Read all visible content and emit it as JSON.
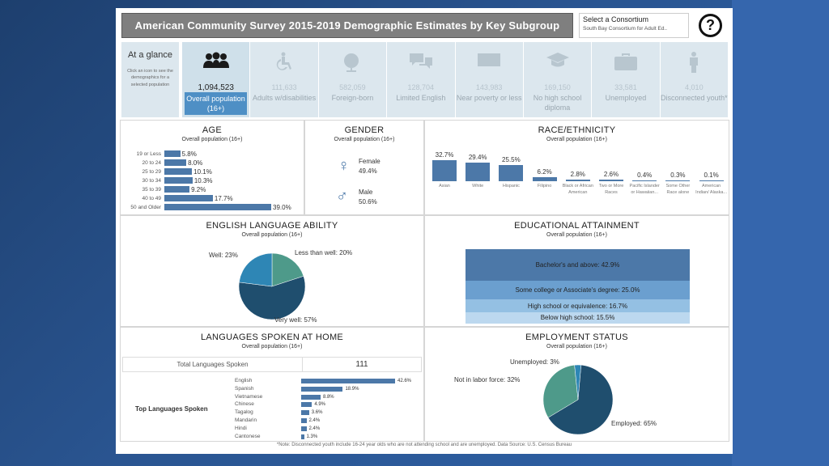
{
  "title": "American Community Survey 2015-2019 Demographic Estimates by Key Subgroup",
  "consortium": {
    "label": "Select a Consortium",
    "value": "South Bay Consortium for Adult Ed.."
  },
  "help_icon": "question-circle-icon",
  "glance": {
    "title": "At a glance",
    "hint": "Click an icon to see the demographics for a selected population"
  },
  "tiles": [
    {
      "icon": "people-icon",
      "value": "1,094,523",
      "label": "Overall population (16+)",
      "active": true
    },
    {
      "icon": "wheelchair-icon",
      "value": "111,633",
      "label": "Adults w/disabilities",
      "active": false
    },
    {
      "icon": "globe-icon",
      "value": "582,059",
      "label": "Foreign-born",
      "active": false
    },
    {
      "icon": "speech-bubbles-icon",
      "value": "128,704",
      "label": "Limited English",
      "active": false
    },
    {
      "icon": "money-icon",
      "value": "143,983",
      "label": "Near poverty or less",
      "active": false
    },
    {
      "icon": "graduation-cap-icon",
      "value": "169,150",
      "label": "No high school diploma",
      "active": false
    },
    {
      "icon": "briefcase-icon",
      "value": "33,581",
      "label": "Unemployed",
      "active": false
    },
    {
      "icon": "person-icon",
      "value": "4,010",
      "label": "Disconnected youth*",
      "active": false
    }
  ],
  "age": {
    "title": "AGE",
    "subtitle": "Overall population (16+)",
    "rows": [
      {
        "label": "19 or Less",
        "pct": "5.8%",
        "value": 5.8
      },
      {
        "label": "20 to 24",
        "pct": "8.0%",
        "value": 8.0
      },
      {
        "label": "25 to 29",
        "pct": "10.1%",
        "value": 10.1
      },
      {
        "label": "30 to 34",
        "pct": "10.3%",
        "value": 10.3
      },
      {
        "label": "35 to 39",
        "pct": "9.2%",
        "value": 9.2
      },
      {
        "label": "40 to 49",
        "pct": "17.7%",
        "value": 17.7
      },
      {
        "label": "50 and Older",
        "pct": "39.0%",
        "value": 39.0
      }
    ]
  },
  "gender": {
    "title": "GENDER",
    "subtitle": "Overall population (16+)",
    "female": {
      "label": "Female",
      "pct": "49.4%"
    },
    "male": {
      "label": "Male",
      "pct": "50.6%"
    }
  },
  "race": {
    "title": "RACE/ETHNICITY",
    "subtitle": "Overall population (16+)",
    "cols": [
      {
        "label": "Asian",
        "pct": "32.7%",
        "value": 32.7
      },
      {
        "label": "White",
        "pct": "29.4%",
        "value": 29.4
      },
      {
        "label": "Hispanic",
        "pct": "25.5%",
        "value": 25.5
      },
      {
        "label": "Filipino",
        "pct": "6.2%",
        "value": 6.2
      },
      {
        "label": "Black or African American",
        "pct": "2.8%",
        "value": 2.8
      },
      {
        "label": "Two or More Races",
        "pct": "2.6%",
        "value": 2.6
      },
      {
        "label": "Pacific Islander or Hawaiian...",
        "pct": "0.4%",
        "value": 0.4
      },
      {
        "label": "Some Other Race alone",
        "pct": "0.3%",
        "value": 0.3
      },
      {
        "label": "American Indian/ Alaska...",
        "pct": "0.1%",
        "value": 0.1
      }
    ]
  },
  "english": {
    "title": "ENGLISH LANGUAGE ABILITY",
    "subtitle": "Overall population (16+)",
    "slices": [
      {
        "label": "Less than well: 20%",
        "value": 20,
        "color": "#4e9a8a"
      },
      {
        "label": "Very well: 57%",
        "value": 57,
        "color": "#1f4e6e"
      },
      {
        "label": "Well: 23%",
        "value": 23,
        "color": "#2e86b5"
      }
    ]
  },
  "education": {
    "title": "EDUCATIONAL ATTAINMENT",
    "subtitle": "Overall population (16+)",
    "levels": [
      {
        "label": "Bachelor's and above: 42.9%",
        "value": 42.9,
        "color": "#4c78a8"
      },
      {
        "label": "Some college or Associate's degree: 25.0%",
        "value": 25.0,
        "color": "#6b9fcf"
      },
      {
        "label": "High school or equivalence: 16.7%",
        "value": 16.7,
        "color": "#94c0e3"
      },
      {
        "label": "Below high school: 15.5%",
        "value": 15.5,
        "color": "#bcd8ef"
      }
    ]
  },
  "languages": {
    "title": "LANGUAGES SPOKEN AT HOME",
    "subtitle": "Overall population (16+)",
    "total_label": "Total Languages Spoken",
    "total_value": "111",
    "top_label": "Top Languages Spoken",
    "rows": [
      {
        "label": "English",
        "pct": "42.6%",
        "value": 42.6
      },
      {
        "label": "Spanish",
        "pct": "18.9%",
        "value": 18.9
      },
      {
        "label": "Vietnamese",
        "pct": "8.8%",
        "value": 8.8
      },
      {
        "label": "Chinese",
        "pct": "4.9%",
        "value": 4.9
      },
      {
        "label": "Tagalog",
        "pct": "3.6%",
        "value": 3.6
      },
      {
        "label": "Mandarin",
        "pct": "2.4%",
        "value": 2.4
      },
      {
        "label": "Hindi",
        "pct": "2.4%",
        "value": 2.4
      },
      {
        "label": "Cantonese",
        "pct": "1.3%",
        "value": 1.3
      }
    ]
  },
  "employment": {
    "title": "EMPLOYMENT STATUS",
    "subtitle": "Overall population (16+)",
    "slices": [
      {
        "label": "Employed: 65%",
        "value": 65,
        "color": "#1f4e6e"
      },
      {
        "label": "Not in labor force: 32%",
        "value": 32,
        "color": "#4e9a8a"
      },
      {
        "label": "Unemployed: 3%",
        "value": 3,
        "color": "#2e86b5"
      }
    ]
  },
  "footnote": "*Note: Disconnected youth include 16-24 year olds who are not attending school and are unemployed. Data Source: U.S. Census Bureau"
}
